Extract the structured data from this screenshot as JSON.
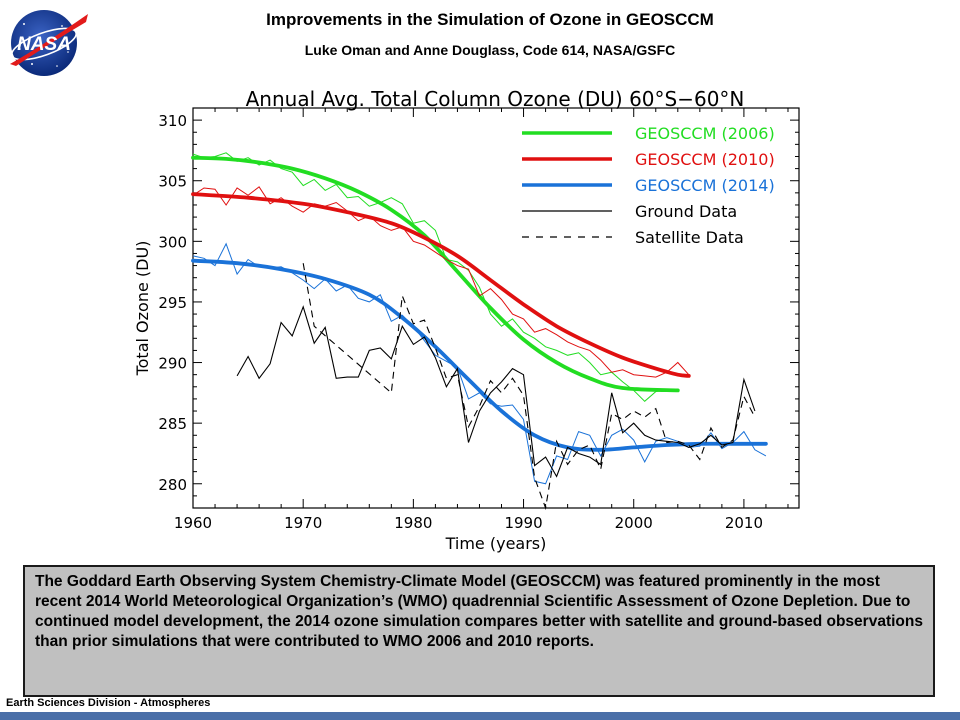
{
  "slide": {
    "title": "Improvements in the Simulation of Ozone in GEOSCCM",
    "subtitle": "Luke Oman and Anne Douglass, Code 614, NASA/GSFC",
    "logo_text": "NASA",
    "caption": "The Goddard Earth Observing System Chemistry-Climate Model (GEOSCCM) was featured prominently in the most recent 2014 World Meteorological Organization’s (WMO) quadrennial Scientific Assessment of Ozone Depletion. Due to continued model development, the 2014 ozone simulation compares better with satellite and ground-based observations than prior simulations that were contributed to WMO 2006 and 2010 reports.",
    "footer": "Earth Sciences Division - Atmospheres",
    "accent_color": "#4a6fa8"
  },
  "chart_data": {
    "type": "line",
    "title": "Annual Avg. Total Column Ozone (DU) 60°S−60°N",
    "xlabel": "Time (years)",
    "ylabel": "Total Ozone (DU)",
    "xlim": [
      1960,
      2015
    ],
    "ylim": [
      278,
      311
    ],
    "xticks": [
      1960,
      1970,
      1980,
      1990,
      2000,
      2010
    ],
    "yticks": [
      280,
      285,
      290,
      295,
      300,
      305,
      310
    ],
    "legend_position": "top-right",
    "grid": false,
    "series": [
      {
        "name": "GEOSCCM (2006)",
        "color": "#22dd22",
        "style": "thin-and-smooth",
        "x": [
          1960,
          1961,
          1962,
          1963,
          1964,
          1965,
          1966,
          1967,
          1968,
          1969,
          1970,
          1971,
          1972,
          1973,
          1974,
          1975,
          1976,
          1977,
          1978,
          1979,
          1980,
          1981,
          1982,
          1983,
          1984,
          1985,
          1986,
          1987,
          1988,
          1989,
          1990,
          1991,
          1992,
          1993,
          1994,
          1995,
          1996,
          1997,
          1998,
          1999,
          2000,
          2001,
          2002,
          2003,
          2004
        ],
        "values": [
          307.2,
          306.9,
          307.0,
          307.3,
          306.6,
          306.9,
          306.3,
          306.7,
          306.0,
          305.7,
          304.6,
          305.1,
          304.2,
          304.7,
          303.6,
          303.7,
          302.9,
          303.2,
          303.6,
          303.1,
          301.5,
          301.7,
          300.9,
          298.5,
          298.3,
          297.6,
          296.2,
          294.0,
          293.0,
          293.6,
          292.5,
          292.0,
          291.3,
          291.0,
          290.6,
          290.8,
          290.0,
          289.0,
          289.2,
          288.4,
          287.7,
          286.8,
          287.6,
          287.8,
          287.8
        ],
        "smooth": [
          306.9,
          306.8,
          306.5,
          306.0,
          305.2,
          304.1,
          302.6,
          300.5,
          297.5,
          294.5,
          291.9,
          290.0,
          288.7,
          287.9,
          287.7
        ],
        "smooth_x": [
          1960,
          1963,
          1966,
          1969,
          1972,
          1975,
          1978,
          1981,
          1984,
          1987,
          1990,
          1993,
          1996,
          1999,
          2004
        ]
      },
      {
        "name": "GEOSCCM (2010)",
        "color": "#e01010",
        "style": "thin-and-smooth",
        "x": [
          1960,
          1961,
          1962,
          1963,
          1964,
          1965,
          1966,
          1967,
          1968,
          1969,
          1970,
          1971,
          1972,
          1973,
          1974,
          1975,
          1976,
          1977,
          1978,
          1979,
          1980,
          1981,
          1982,
          1983,
          1984,
          1985,
          1986,
          1987,
          1988,
          1989,
          1990,
          1991,
          1992,
          1993,
          1994,
          1995,
          1996,
          1997,
          1998,
          1999,
          2000,
          2001,
          2002,
          2003,
          2004,
          2005
        ],
        "values": [
          303.8,
          304.4,
          304.3,
          303.0,
          304.4,
          303.8,
          304.5,
          303.1,
          303.6,
          302.9,
          302.4,
          303.1,
          302.9,
          303.2,
          302.5,
          301.7,
          302.1,
          301.3,
          300.9,
          301.2,
          300.0,
          299.7,
          299.1,
          298.5,
          298.0,
          297.7,
          295.5,
          296.1,
          295.2,
          294.0,
          293.6,
          292.5,
          292.8,
          292.3,
          291.7,
          291.3,
          291.0,
          290.2,
          289.2,
          289.4,
          289.0,
          288.9,
          288.8,
          289.2,
          290.0,
          289.0
        ],
        "smooth": [
          303.9,
          303.6,
          303.1,
          302.4,
          301.5,
          300.3,
          298.8,
          296.8,
          294.8,
          293.0,
          291.6,
          290.4,
          289.5,
          289.0,
          288.9
        ],
        "smooth_x": [
          1960,
          1965,
          1970,
          1974,
          1978,
          1981,
          1984,
          1987,
          1990,
          1993,
          1996,
          1999,
          2002,
          2004,
          2005
        ]
      },
      {
        "name": "GEOSCCM (2014)",
        "color": "#1a72d8",
        "style": "thin-and-smooth",
        "x": [
          1960,
          1961,
          1962,
          1963,
          1964,
          1965,
          1966,
          1967,
          1968,
          1969,
          1970,
          1971,
          1972,
          1973,
          1974,
          1975,
          1976,
          1977,
          1978,
          1979,
          1980,
          1981,
          1982,
          1983,
          1984,
          1985,
          1986,
          1987,
          1988,
          1989,
          1990,
          1991,
          1992,
          1993,
          1994,
          1995,
          1996,
          1997,
          1998,
          1999,
          2000,
          2001,
          2002,
          2003,
          2004,
          2005,
          2006,
          2007,
          2008,
          2009,
          2010,
          2011,
          2012
        ],
        "values": [
          298.8,
          298.6,
          298.0,
          299.8,
          297.3,
          298.5,
          297.9,
          297.8,
          297.9,
          297.4,
          296.8,
          296.1,
          296.9,
          295.9,
          296.4,
          295.3,
          295.0,
          295.6,
          293.4,
          293.9,
          293.0,
          291.8,
          290.6,
          290.1,
          289.6,
          287.0,
          287.5,
          286.6,
          286.4,
          286.5,
          285.3,
          280.2,
          280.0,
          282.3,
          282.0,
          284.3,
          284.0,
          282.3,
          284.0,
          284.5,
          283.6,
          281.8,
          283.5,
          283.8,
          283.5,
          283.0,
          283.1,
          284.2,
          282.9,
          283.4,
          284.3,
          282.8,
          282.3
        ],
        "smooth": [
          298.4,
          298.2,
          297.7,
          296.9,
          295.6,
          293.7,
          291.3,
          288.6,
          286.0,
          284.0,
          283.0,
          282.8,
          283.0,
          283.2,
          283.3,
          283.3,
          283.3
        ],
        "smooth_x": [
          1960,
          1964,
          1968,
          1972,
          1976,
          1979,
          1982,
          1985,
          1988,
          1991,
          1994,
          1997,
          2000,
          2003,
          2006,
          2009,
          2012
        ]
      },
      {
        "name": "Ground Data",
        "color": "#000000",
        "style": "solid",
        "x": [
          1964,
          1965,
          1966,
          1967,
          1968,
          1969,
          1970,
          1971,
          1972,
          1973,
          1974,
          1975,
          1976,
          1977,
          1978,
          1979,
          1980,
          1981,
          1982,
          1983,
          1984,
          1985,
          1986,
          1987,
          1988,
          1989,
          1990,
          1991,
          1992,
          1993,
          1994,
          1995,
          1996,
          1997,
          1998,
          1999,
          2000,
          2001,
          2002,
          2003,
          2004,
          2005,
          2006,
          2007,
          2008,
          2009,
          2010,
          2011
        ],
        "values": [
          288.9,
          290.5,
          288.7,
          289.9,
          293.3,
          292.2,
          294.6,
          291.6,
          292.9,
          288.7,
          288.8,
          288.8,
          291.0,
          291.2,
          290.3,
          293.0,
          291.5,
          292.1,
          290.4,
          288.0,
          289.5,
          283.4,
          286.0,
          287.5,
          288.4,
          289.5,
          289.0,
          281.5,
          282.2,
          280.6,
          283.0,
          282.5,
          282.2,
          281.6,
          287.5,
          284.2,
          285.0,
          284.0,
          283.6,
          283.5,
          283.4,
          283.0,
          283.3,
          284.0,
          283.2,
          283.4,
          288.6,
          286.0
        ]
      },
      {
        "name": "Satellite Data",
        "color": "#000000",
        "style": "dashed",
        "x": [
          1970,
          1971,
          1978,
          1979,
          1980,
          1981,
          1982,
          1983,
          1984,
          1985,
          1986,
          1987,
          1988,
          1989,
          1990,
          1991,
          1992,
          1993,
          1994,
          1995,
          1996,
          1997,
          1998,
          1999,
          2000,
          2001,
          2002,
          2003,
          2004,
          2005,
          2006,
          2007,
          2008,
          2009,
          2010,
          2011
        ],
        "values": [
          298.2,
          293.0,
          287.5,
          295.5,
          293.2,
          293.5,
          291.2,
          288.7,
          289.0,
          284.7,
          286.4,
          288.5,
          287.5,
          288.7,
          287.3,
          280.5,
          278.0,
          283.5,
          281.6,
          282.8,
          283.2,
          281.2,
          285.8,
          285.3,
          286.0,
          285.5,
          286.2,
          283.4,
          283.5,
          283.2,
          282.0,
          284.6,
          283.0,
          283.6,
          287.2,
          285.5
        ]
      }
    ]
  }
}
